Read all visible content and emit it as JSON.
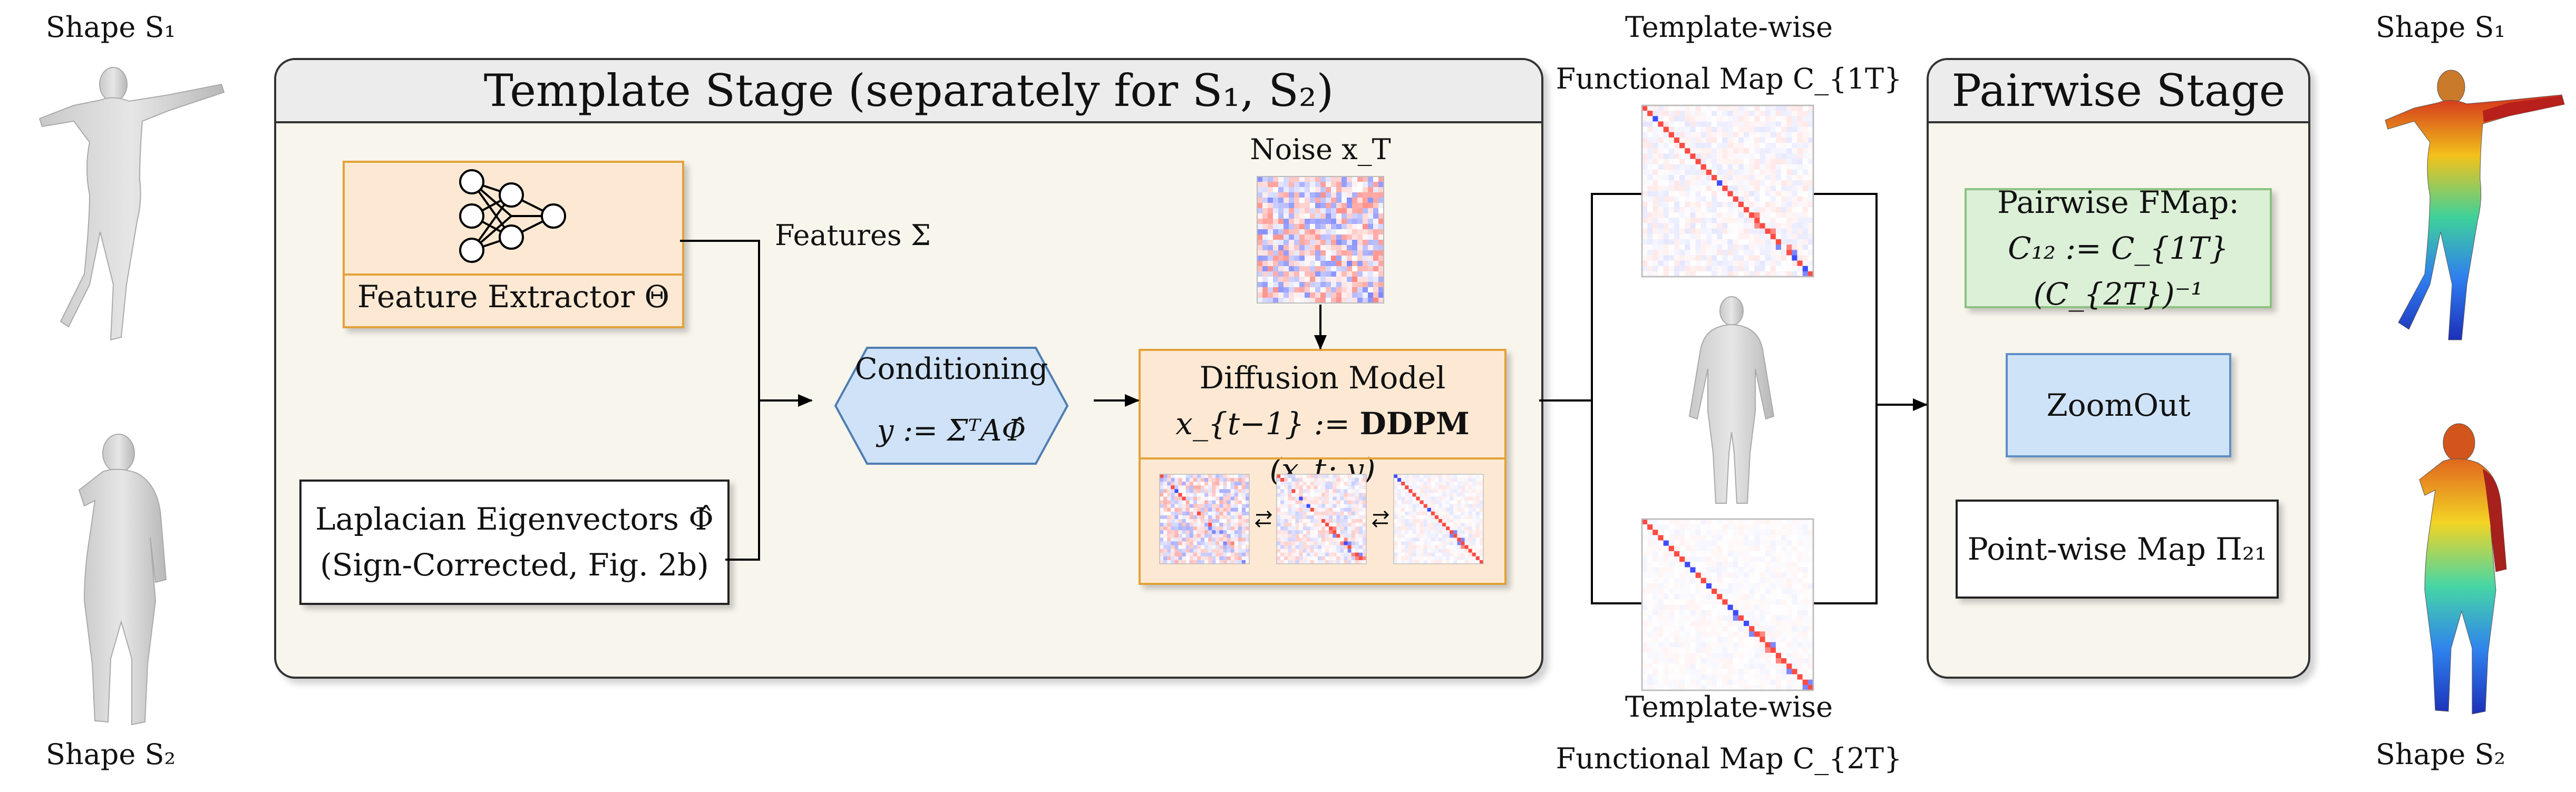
{
  "shapes": {
    "s1_label": "Shape S₁",
    "s2_label": "Shape S₂",
    "s1_right_label": "Shape S₁",
    "s2_right_label": "Shape S₂"
  },
  "template_stage": {
    "title": "Template Stage (separately for S₁, S₂)",
    "feature_extractor": "Feature Extractor Θ",
    "features_label": "Features Σ",
    "laplacian_line1": "Laplacian Eigenvectors Φ̂",
    "laplacian_line2": "(Sign-Corrected, Fig. 2b)",
    "conditioning_title": "Conditioning",
    "conditioning_formula": "y := ΣᵀAΦ̂",
    "noise_label": "Noise x_T",
    "diffusion_title": "Diffusion Model",
    "diffusion_formula_lhs": "x_{t−1} := ",
    "diffusion_formula_op": "DDPM",
    "diffusion_formula_rhs": " (x_t; y)"
  },
  "template_maps": {
    "top_line1": "Template-wise",
    "top_line2": "Functional Map C_{1T}",
    "bottom_line1": "Template-wise",
    "bottom_line2": "Functional Map C_{2T}"
  },
  "pairwise_stage": {
    "title": "Pairwise Stage",
    "fmap_title": "Pairwise FMap:",
    "fmap_formula": "C₁₂ := C_{1T}(C_{2T})⁻¹",
    "zoomout": "ZoomOut",
    "pointwise": "Point-wise Map Π₂₁"
  },
  "colors": {
    "stage_bg": "#f8f5ed",
    "header_bg": "#ececec",
    "orange_fill": "#fde9d3",
    "orange_border": "#e3a23a",
    "blue_fill": "#cfe3f8",
    "green_fill": "#dcefd7",
    "matrix_red": "#d62728",
    "matrix_blue": "#1f3fd0"
  },
  "icons": [
    "neural-network-icon",
    "swap-arrows-icon",
    "human-mesh-icon"
  ]
}
